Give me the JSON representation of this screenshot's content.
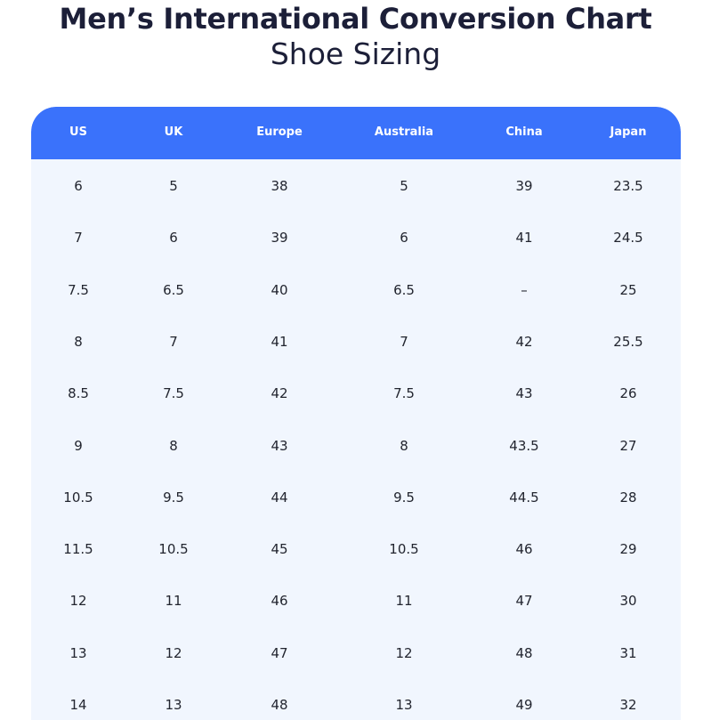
{
  "page": {
    "title": "Men’s International Conversion Chart",
    "subtitle": "Shoe Sizing"
  },
  "colors": {
    "header_background": "#3a72fb",
    "header_text": "#ffffff",
    "table_background": "#f1f6fe",
    "title_text": "#1c1f38",
    "cell_text": "#22252f"
  },
  "chart_data": {
    "type": "table",
    "title": "Men’s International Conversion Chart",
    "subtitle": "Shoe Sizing",
    "columns": [
      "US",
      "UK",
      "Europe",
      "Australia",
      "China",
      "Japan"
    ],
    "rows": [
      [
        "6",
        "5",
        "38",
        "5",
        "39",
        "23.5"
      ],
      [
        "7",
        "6",
        "39",
        "6",
        "41",
        "24.5"
      ],
      [
        "7.5",
        "6.5",
        "40",
        "6.5",
        "–",
        "25"
      ],
      [
        "8",
        "7",
        "41",
        "7",
        "42",
        "25.5"
      ],
      [
        "8.5",
        "7.5",
        "42",
        "7.5",
        "43",
        "26"
      ],
      [
        "9",
        "8",
        "43",
        "8",
        "43.5",
        "27"
      ],
      [
        "10.5",
        "9.5",
        "44",
        "9.5",
        "44.5",
        "28"
      ],
      [
        "11.5",
        "10.5",
        "45",
        "10.5",
        "46",
        "29"
      ],
      [
        "12",
        "11",
        "46",
        "11",
        "47",
        "30"
      ],
      [
        "13",
        "12",
        "47",
        "12",
        "48",
        "31"
      ],
      [
        "14",
        "13",
        "48",
        "13",
        "49",
        "32"
      ]
    ]
  }
}
